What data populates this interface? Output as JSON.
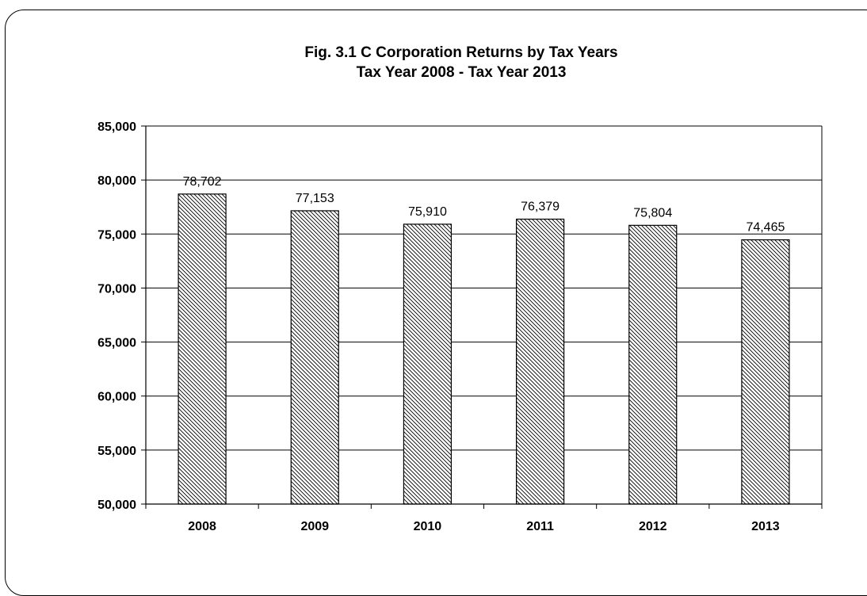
{
  "chart_data": {
    "type": "bar",
    "title": "Fig. 3.1  C Corporation Returns by Tax Years",
    "subtitle": "Tax Year 2008 - Tax Year 2013",
    "categories": [
      "2008",
      "2009",
      "2010",
      "2011",
      "2012",
      "2013"
    ],
    "values": [
      78702,
      77153,
      75910,
      76379,
      75804,
      74465
    ],
    "data_labels": [
      "78,702",
      "77,153",
      "75,910",
      "76,379",
      "75,804",
      "74,465"
    ],
    "xlabel": "",
    "ylabel": "",
    "ylim": [
      50000,
      85000
    ],
    "ytick_labels": [
      "50,000",
      "55,000",
      "60,000",
      "65,000",
      "70,000",
      "75,000",
      "80,000",
      "85,000"
    ],
    "grid": true,
    "bar_fill": "diagonal-hatch",
    "colors": {
      "bar_stroke": "#000000",
      "hatch": "#000000",
      "grid": "#000000",
      "background": "#ffffff"
    }
  }
}
